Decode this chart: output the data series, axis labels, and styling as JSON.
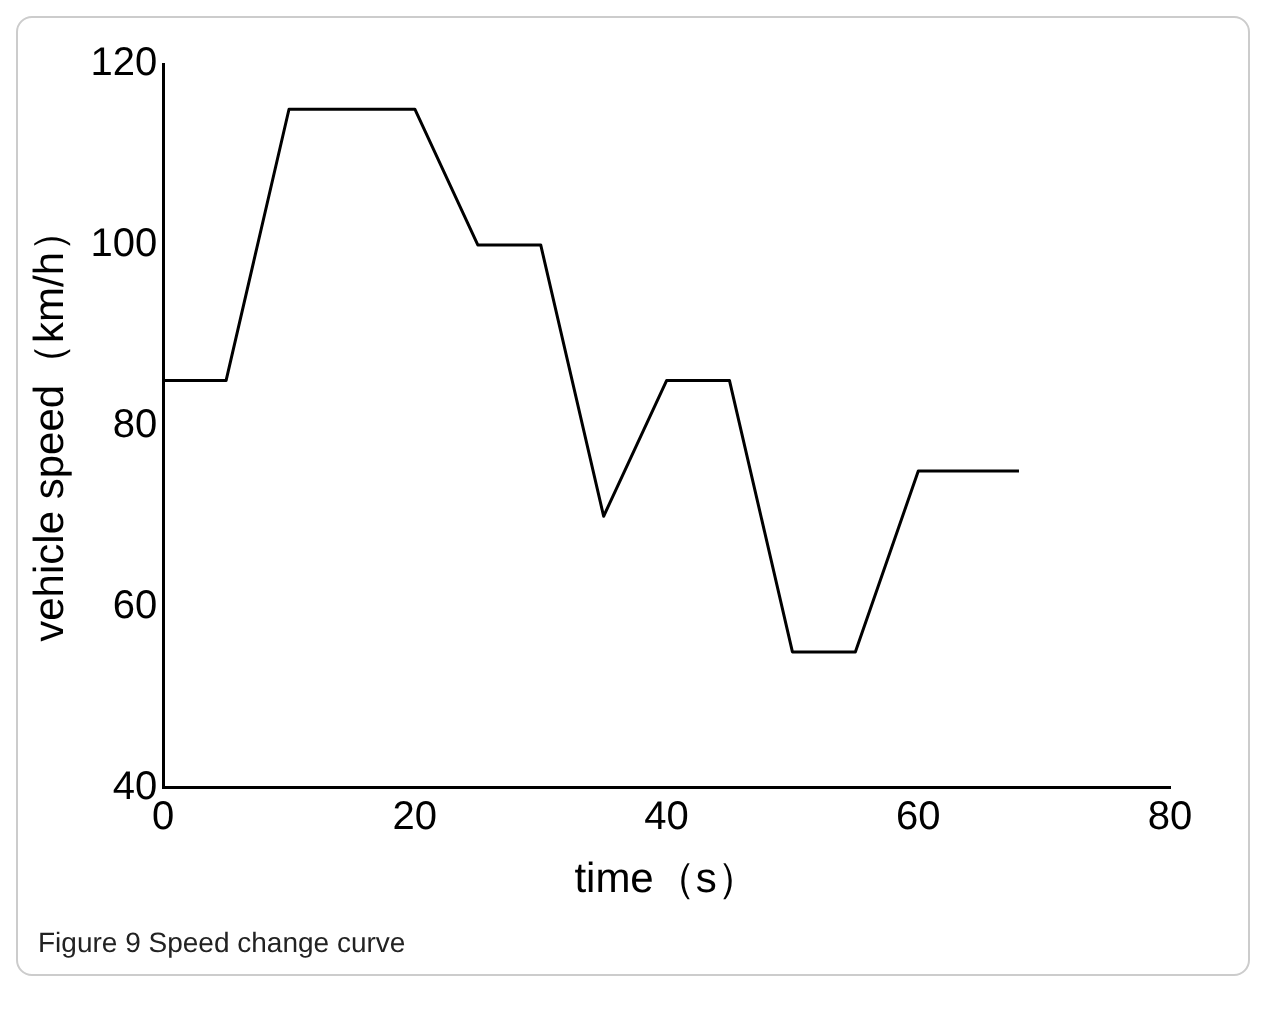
{
  "chart_data": {
    "type": "line",
    "xlabel": "time（s）",
    "ylabel": "vehicle speed（km/h）",
    "annotations": [
      "Figure 9 Speed change curve"
    ],
    "x": [
      0,
      5,
      10,
      20,
      25,
      30,
      35,
      40,
      45,
      50,
      55,
      60,
      68
    ],
    "series": [
      {
        "color": "#000000",
        "values": [
          85,
          85,
          115,
          115,
          100,
          100,
          70,
          85,
          85,
          55,
          55,
          75,
          75
        ]
      }
    ],
    "xlim": [
      0,
      80
    ],
    "xticks": [
      0,
      20,
      40,
      60,
      80
    ],
    "ylim": [
      40,
      120
    ],
    "yticks": [
      40,
      60,
      80,
      100,
      120
    ],
    "grid": false,
    "legend": false,
    "marker": "none",
    "line_style": "solid"
  }
}
